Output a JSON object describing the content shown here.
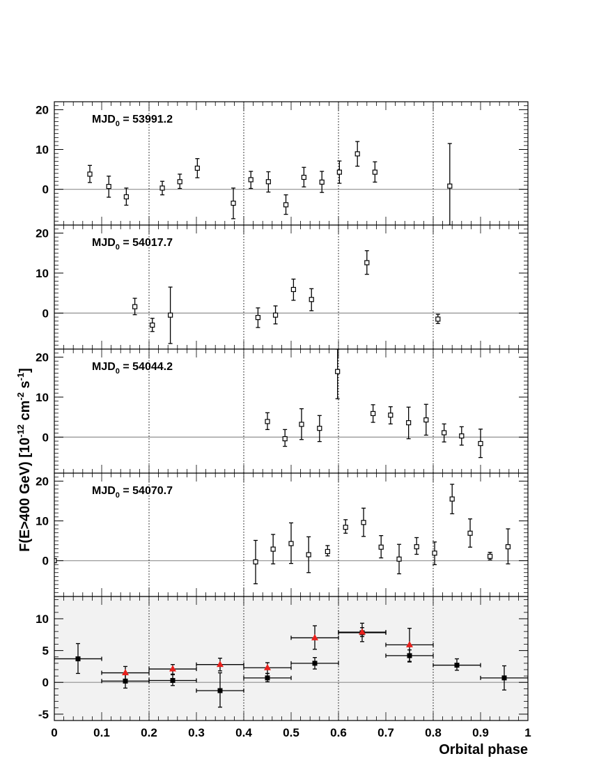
{
  "chart_data": [
    {
      "type": "scatter",
      "label_main": "MJD",
      "label_sub": "0",
      "label_value": " = 53991.2",
      "xlim": [
        0,
        1
      ],
      "ylim": [
        -9,
        22
      ],
      "yticks": [
        0,
        10,
        20
      ],
      "series": [
        {
          "marker": "open-square",
          "color": "#000000",
          "points": [
            {
              "x": 0.075,
              "y": 3.8,
              "ylo": 1.7,
              "yhi": 6.0
            },
            {
              "x": 0.115,
              "y": 0.7,
              "ylo": -2.0,
              "yhi": 3.3
            },
            {
              "x": 0.152,
              "y": -1.9,
              "ylo": -4.0,
              "yhi": 0.3
            },
            {
              "x": 0.228,
              "y": 0.3,
              "ylo": -1.4,
              "yhi": 2.0
            },
            {
              "x": 0.265,
              "y": 1.9,
              "ylo": 0.2,
              "yhi": 3.8
            },
            {
              "x": 0.302,
              "y": 5.3,
              "ylo": 2.9,
              "yhi": 7.7
            },
            {
              "x": 0.378,
              "y": -3.5,
              "ylo": -7.4,
              "yhi": 0.3
            },
            {
              "x": 0.415,
              "y": 2.4,
              "ylo": 0.2,
              "yhi": 4.5
            },
            {
              "x": 0.452,
              "y": 1.9,
              "ylo": -0.7,
              "yhi": 4.4
            },
            {
              "x": 0.489,
              "y": -3.9,
              "ylo": -6.3,
              "yhi": -1.4
            },
            {
              "x": 0.527,
              "y": 3.0,
              "ylo": 0.6,
              "yhi": 5.5
            },
            {
              "x": 0.565,
              "y": 1.8,
              "ylo": -0.8,
              "yhi": 4.5
            },
            {
              "x": 0.602,
              "y": 4.3,
              "ylo": 1.5,
              "yhi": 7.1
            },
            {
              "x": 0.64,
              "y": 8.9,
              "ylo": 5.8,
              "yhi": 12.0
            },
            {
              "x": 0.677,
              "y": 4.3,
              "ylo": 1.8,
              "yhi": 6.9
            },
            {
              "x": 0.835,
              "y": 0.8,
              "ylo": -9.0,
              "yhi": 11.5
            }
          ]
        }
      ]
    },
    {
      "type": "scatter",
      "label_main": "MJD",
      "label_sub": "0",
      "label_value": " = 54017.7",
      "xlim": [
        0,
        1
      ],
      "ylim": [
        -9,
        22
      ],
      "yticks": [
        0,
        10,
        20
      ],
      "series": [
        {
          "marker": "open-square",
          "color": "#000000",
          "points": [
            {
              "x": 0.17,
              "y": 1.6,
              "ylo": -0.4,
              "yhi": 3.7
            },
            {
              "x": 0.207,
              "y": -3.0,
              "ylo": -4.6,
              "yhi": -1.3
            },
            {
              "x": 0.245,
              "y": -0.5,
              "ylo": -7.6,
              "yhi": 6.5
            },
            {
              "x": 0.43,
              "y": -1.1,
              "ylo": -3.6,
              "yhi": 1.3
            },
            {
              "x": 0.467,
              "y": -0.5,
              "ylo": -2.7,
              "yhi": 1.8
            },
            {
              "x": 0.505,
              "y": 5.9,
              "ylo": 3.2,
              "yhi": 8.5
            },
            {
              "x": 0.543,
              "y": 3.4,
              "ylo": 0.6,
              "yhi": 6.1
            },
            {
              "x": 0.66,
              "y": 12.6,
              "ylo": 9.7,
              "yhi": 15.6
            },
            {
              "x": 0.81,
              "y": -1.5,
              "ylo": -2.6,
              "yhi": -0.3
            }
          ]
        }
      ]
    },
    {
      "type": "scatter",
      "label_main": "MJD",
      "label_sub": "0",
      "label_value": " = 54044.2",
      "xlim": [
        0,
        1
      ],
      "ylim": [
        -9,
        22
      ],
      "yticks": [
        0,
        10,
        20
      ],
      "series": [
        {
          "marker": "open-square",
          "color": "#000000",
          "points": [
            {
              "x": 0.45,
              "y": 3.9,
              "ylo": 1.9,
              "yhi": 6.1
            },
            {
              "x": 0.487,
              "y": -0.4,
              "ylo": -2.3,
              "yhi": 1.9
            },
            {
              "x": 0.522,
              "y": 3.2,
              "ylo": -0.6,
              "yhi": 7.1
            },
            {
              "x": 0.56,
              "y": 2.2,
              "ylo": -1.1,
              "yhi": 5.4
            },
            {
              "x": 0.598,
              "y": 16.4,
              "ylo": 9.6,
              "yhi": 22.0
            },
            {
              "x": 0.673,
              "y": 5.9,
              "ylo": 3.7,
              "yhi": 8.1
            },
            {
              "x": 0.71,
              "y": 5.5,
              "ylo": 3.3,
              "yhi": 7.6
            },
            {
              "x": 0.748,
              "y": 3.6,
              "ylo": -0.4,
              "yhi": 7.5
            },
            {
              "x": 0.785,
              "y": 4.3,
              "ylo": 0.5,
              "yhi": 8.2
            },
            {
              "x": 0.823,
              "y": 1.1,
              "ylo": -1.2,
              "yhi": 3.3
            },
            {
              "x": 0.86,
              "y": 0.3,
              "ylo": -2.0,
              "yhi": 2.6
            },
            {
              "x": 0.9,
              "y": -1.6,
              "ylo": -5.1,
              "yhi": 2.0
            }
          ]
        }
      ]
    },
    {
      "type": "scatter",
      "label_main": "MJD",
      "label_sub": "0",
      "label_value": " = 54070.7",
      "xlim": [
        0,
        1
      ],
      "ylim": [
        -9,
        22
      ],
      "yticks": [
        0,
        10,
        20
      ],
      "series": [
        {
          "marker": "open-square",
          "color": "#000000",
          "points": [
            {
              "x": 0.0,
              "y": 0.0,
              "ylo": 0.0,
              "yhi": 0.0
            },
            {
              "x": 0.425,
              "y": -0.3,
              "ylo": -5.8,
              "yhi": 5.1
            },
            {
              "x": 0.462,
              "y": 2.9,
              "ylo": -0.8,
              "yhi": 6.6
            },
            {
              "x": 0.5,
              "y": 4.3,
              "ylo": -0.7,
              "yhi": 9.5
            },
            {
              "x": 0.537,
              "y": 1.5,
              "ylo": -3.0,
              "yhi": 6.0
            },
            {
              "x": 0.577,
              "y": 2.3,
              "ylo": 1.2,
              "yhi": 3.8
            },
            {
              "x": 0.615,
              "y": 8.4,
              "ylo": 6.9,
              "yhi": 10.3
            },
            {
              "x": 0.653,
              "y": 9.6,
              "ylo": 6.1,
              "yhi": 13.2
            },
            {
              "x": 0.69,
              "y": 3.4,
              "ylo": 0.7,
              "yhi": 6.3
            },
            {
              "x": 0.728,
              "y": 0.4,
              "ylo": -3.3,
              "yhi": 4.1
            },
            {
              "x": 0.765,
              "y": 3.5,
              "ylo": 1.6,
              "yhi": 5.8
            },
            {
              "x": 0.803,
              "y": 1.9,
              "ylo": -1.0,
              "yhi": 4.7
            },
            {
              "x": 0.84,
              "y": 15.5,
              "ylo": 11.8,
              "yhi": 19.2
            },
            {
              "x": 0.878,
              "y": 6.9,
              "ylo": 3.4,
              "yhi": 10.5
            },
            {
              "x": 0.92,
              "y": 1.1,
              "ylo": 0.2,
              "yhi": 2.1
            },
            {
              "x": 0.958,
              "y": 3.5,
              "ylo": -0.8,
              "yhi": 8.0
            }
          ]
        }
      ]
    },
    {
      "type": "scatter",
      "label_main": "",
      "label_sub": "",
      "label_value": "",
      "xlim": [
        0,
        1
      ],
      "ylim": [
        -6,
        13.5
      ],
      "yticks": [
        -5,
        0,
        5,
        10
      ],
      "background": "#f2f2f2",
      "series": [
        {
          "marker": "filled-square",
          "color": "#000000",
          "points": [
            {
              "x": 0.05,
              "y": 3.7,
              "ylo": 1.4,
              "yhi": 6.1,
              "xerr": 0.05
            },
            {
              "x": 0.15,
              "y": 0.2,
              "ylo": -0.9,
              "yhi": 1.4,
              "xerr": 0.05
            },
            {
              "x": 0.25,
              "y": 0.3,
              "ylo": -0.5,
              "yhi": 1.2,
              "xerr": 0.05
            },
            {
              "x": 0.35,
              "y": -1.3,
              "ylo": -3.9,
              "yhi": 1.5,
              "xerr": 0.05
            },
            {
              "x": 0.45,
              "y": 0.7,
              "ylo": 0.1,
              "yhi": 1.4,
              "xerr": 0.05
            },
            {
              "x": 0.55,
              "y": 3.0,
              "ylo": 2.1,
              "yhi": 3.9,
              "xerr": 0.05
            },
            {
              "x": 0.65,
              "y": 7.8,
              "ylo": 7.2,
              "yhi": 8.6,
              "xerr": 0.05
            },
            {
              "x": 0.75,
              "y": 4.2,
              "ylo": 3.3,
              "yhi": 5.1,
              "xerr": 0.05
            },
            {
              "x": 0.85,
              "y": 2.7,
              "ylo": 1.9,
              "yhi": 3.7,
              "xerr": 0.05
            },
            {
              "x": 0.95,
              "y": 0.7,
              "ylo": -1.2,
              "yhi": 2.6,
              "xerr": 0.05
            }
          ]
        },
        {
          "marker": "filled-triangle",
          "color": "#e8201c",
          "points": [
            {
              "x": 0.15,
              "y": 1.5,
              "ylo": 0.5,
              "yhi": 2.5,
              "xerr": 0.05
            },
            {
              "x": 0.25,
              "y": 2.1,
              "ylo": 1.3,
              "yhi": 2.8,
              "xerr": 0.05
            },
            {
              "x": 0.35,
              "y": 2.8,
              "ylo": 1.8,
              "yhi": 3.8,
              "xerr": 0.05
            },
            {
              "x": 0.45,
              "y": 2.3,
              "ylo": 1.4,
              "yhi": 3.1,
              "xerr": 0.05
            },
            {
              "x": 0.55,
              "y": 7.0,
              "ylo": 5.2,
              "yhi": 8.9,
              "xerr": 0.05
            },
            {
              "x": 0.65,
              "y": 7.9,
              "ylo": 6.4,
              "yhi": 9.3,
              "xerr": 0.05
            },
            {
              "x": 0.75,
              "y": 5.9,
              "ylo": 3.2,
              "yhi": 8.5,
              "xerr": 0.05
            }
          ]
        }
      ]
    }
  ],
  "axes": {
    "x_ticks": [
      "0",
      "0.1",
      "0.2",
      "0.3",
      "0.4",
      "0.5",
      "0.6",
      "0.7",
      "0.8",
      "0.9",
      "1"
    ],
    "x_title": "Orbital phase",
    "y_title": "F(E>400 GeV) [10-12 cm-2 s-1]",
    "y_title_parts": {
      "a": "F(E>400 GeV) [10",
      "b": "-12",
      "c": " cm",
      "d": "-2",
      "e": " s",
      "f": "-1",
      "g": "]"
    },
    "vertical_lines_x": [
      0.2,
      0.4,
      0.6,
      0.8
    ]
  }
}
